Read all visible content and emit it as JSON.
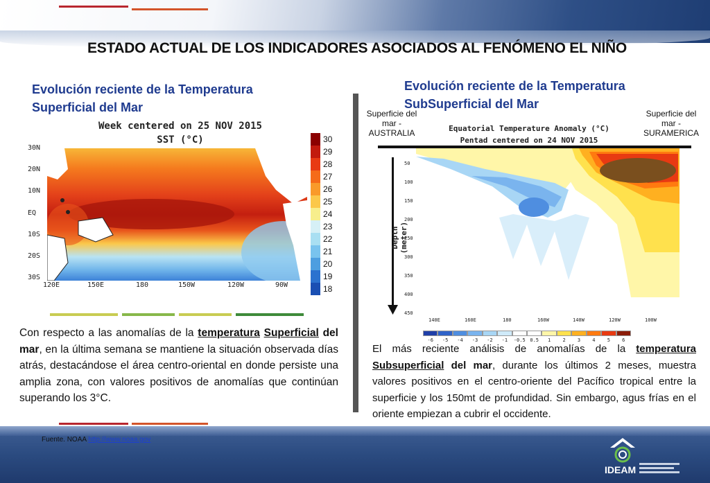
{
  "title": "ESTADO ACTUAL DE LOS INDICADORES ASOCIADOS AL FENÓMENO EL NIÑO",
  "left": {
    "heading_line1": "Evolución reciente de la Temperatura",
    "heading_line2": "Superficial del Mar",
    "map": {
      "title_line1": "Week centered on 25 NOV 2015",
      "title_line2": "SST (°C)",
      "lat_labels": [
        "30N",
        "20N",
        "10N",
        "EQ",
        "10S",
        "20S",
        "30S"
      ],
      "lon_labels": [
        "120E",
        "150E",
        "180",
        "150W",
        "120W",
        "90W"
      ],
      "colorbar": [
        "30",
        "29",
        "28",
        "27",
        "26",
        "25",
        "24",
        "23",
        "22",
        "21",
        "20",
        "19",
        "18"
      ],
      "colorbar_colors": [
        "#8b0000",
        "#c21a0e",
        "#e83a14",
        "#f56b19",
        "#f99a2a",
        "#fbc84a",
        "#f7ee8c",
        "#d6f0f6",
        "#a9dff2",
        "#79c3ee",
        "#4d9ee0",
        "#2b72cf",
        "#1a4fb3"
      ]
    },
    "paragraph": {
      "p1": "Con respecto a las anomalías de la ",
      "bold1": "temperatura",
      "bold2": "Superficial",
      "bold3": "del mar",
      "p2": ", en la última semana se mantiene la situación observada días atrás, destacándose el área centro-oriental en donde persiste una amplia zona, con valores positivos de anomalías que continúan superando los 3°C."
    }
  },
  "right": {
    "heading_line1": "Evolución reciente de la Temperatura",
    "heading_line2": "SubSuperficial del Mar",
    "label_left": "Superficie del mar - AUSTRALIA",
    "label_right": "Superficie del mar - SURAMERICA",
    "chart": {
      "title_line1": "Equatorial Temperature Anomaly (°C)",
      "title_line2": "Pentad centered on 24 NOV 2015",
      "ylabel": "Depth (meter)",
      "depth_labels": [
        "50",
        "100",
        "150",
        "200",
        "250",
        "300",
        "350",
        "400",
        "450"
      ],
      "lon_labels": [
        "140E",
        "160E",
        "180",
        "160W",
        "140W",
        "120W",
        "100W"
      ],
      "colorbar": [
        "-6",
        "-5",
        "-4",
        "-3",
        "-2",
        "-1",
        "-0.5",
        "0.5",
        "1",
        "2",
        "3",
        "4",
        "5",
        "6"
      ],
      "colorbar_colors": [
        "#1f3fa8",
        "#2f63c8",
        "#4f8ee0",
        "#7ab4ee",
        "#a8d6f5",
        "#cfeaf9",
        "#ffffff",
        "#ffffff",
        "#fff6a8",
        "#ffe14d",
        "#ffb020",
        "#ff7a10",
        "#e83a12",
        "#8b1d0a"
      ]
    },
    "paragraph": {
      "p1": "El más reciente análisis de anomalías de la ",
      "bold1": "temperatura",
      "bold2": "Subsuperficial",
      "bold3": "del mar",
      "p2": ", durante los últimos 2 meses,  muestra valores positivos en el centro-oriente del Pacífico tropical entre la superficie y los 150mt de profundidad. Sin embargo, agus frías en el oriente empiezan a cubrir el occidente."
    }
  },
  "footer": {
    "source_label": "Fuente. NOAA",
    "source_link": "http://www.noaa.gov",
    "logo_text": "IDEAM"
  }
}
